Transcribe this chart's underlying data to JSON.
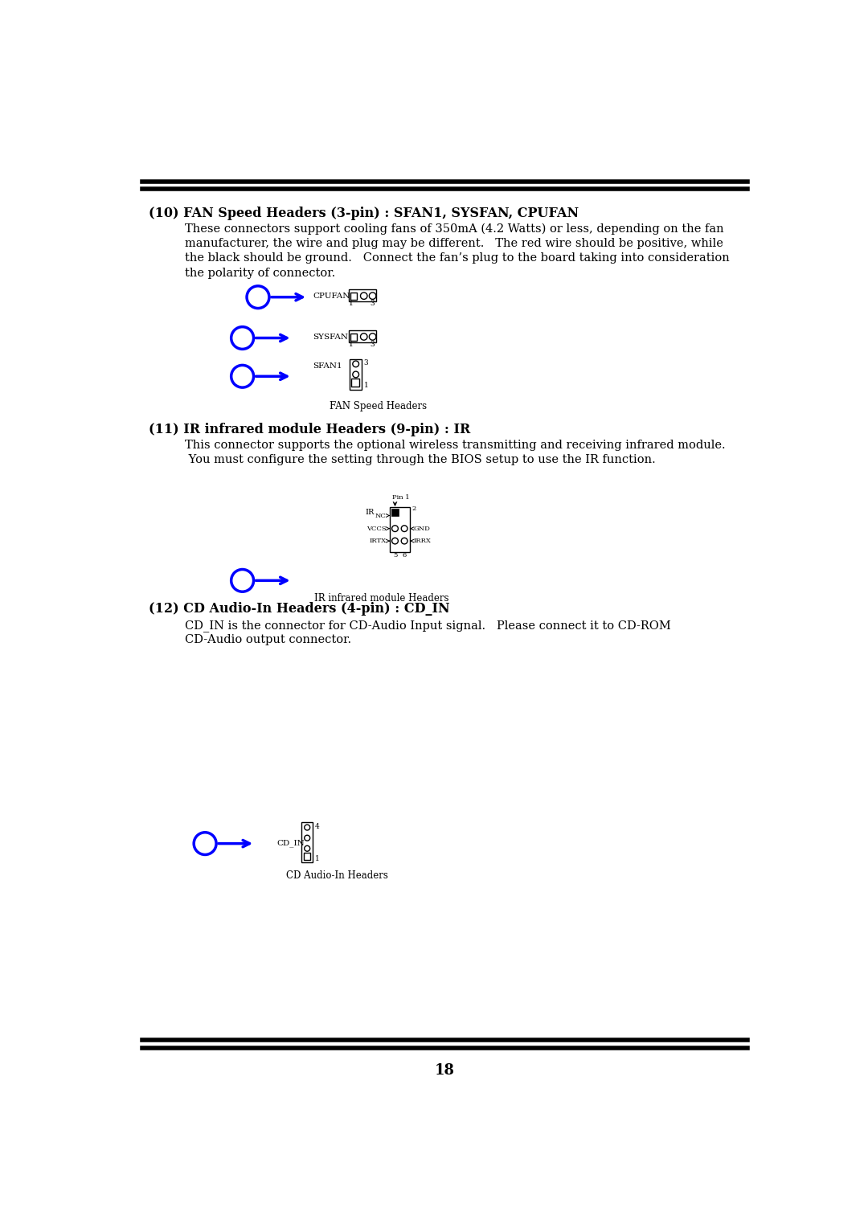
{
  "bg_color": "#ffffff",
  "text_color": "#000000",
  "blue_color": "#0000ff",
  "title_fontsize": 11.5,
  "body_fontsize": 10.5,
  "small_fontsize": 8,
  "caption_fontsize": 8.5,
  "page_number": "18",
  "section10_heading": "(10) FAN Speed Headers (3-pin) : SFAN1, SYSFAN, CPUFAN",
  "section10_body1": "These connectors support cooling fans of 350mA (4.2 Watts) or less, depending on the fan",
  "section10_body2": "manufacturer, the wire and plug may be different.   The red wire should be positive, while",
  "section10_body3": "the black should be ground.   Connect the fan’s plug to the board taking into consideration",
  "section10_body4": "the polarity of connector.",
  "section11_heading": "(11) IR infrared module Headers (9-pin) : IR",
  "section11_body1": "This connector supports the optional wireless transmitting and receiving infrared module.",
  "section11_body2": " You must configure the setting through the BIOS setup to use the IR function.",
  "section12_heading": "(12) CD Audio-In Headers (4-pin) : CD_IN",
  "section12_body1": "CD_IN is the connector for CD-Audio Input signal.   Please connect it to CD-ROM",
  "section12_body2": "CD-Audio output connector.",
  "fan_speed_caption": "FAN Speed Headers",
  "ir_caption": "IR infrared module Headers",
  "cd_caption": "CD Audio-In Headers"
}
